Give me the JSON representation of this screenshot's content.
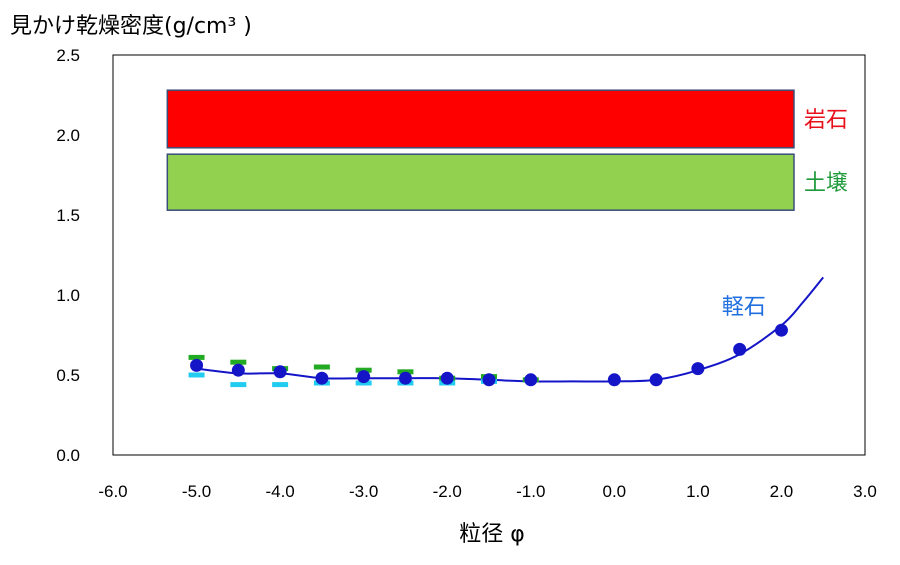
{
  "chart_data": {
    "type": "scatter",
    "title": "",
    "ylabel": "見かけ乾燥密度(g/cm³ )",
    "xlabel": "粒径 φ",
    "xlim": [
      -6.0,
      3.0
    ],
    "ylim": [
      0.0,
      2.5
    ],
    "x_ticks": [
      "-6.0",
      "-5.0",
      "-4.0",
      "-3.0",
      "-2.0",
      "-1.0",
      "0.0",
      "1.0",
      "2.0",
      "3.0"
    ],
    "y_ticks": [
      "0.0",
      "0.5",
      "1.0",
      "1.5",
      "2.0",
      "2.5"
    ],
    "grid": false,
    "bands": [
      {
        "label": "岩石",
        "x": [
          -5.35,
          2.15
        ],
        "y": [
          1.92,
          2.28
        ],
        "color": "#ff0000"
      },
      {
        "label": "土壌",
        "x": [
          -5.35,
          2.15
        ],
        "y": [
          1.53,
          1.88
        ],
        "color": "#92d050"
      }
    ],
    "series": [
      {
        "name": "軽石",
        "marker": "circle",
        "color": "#1515c8",
        "x": [
          -5.0,
          -4.5,
          -4.0,
          -3.5,
          -3.0,
          -2.5,
          -2.0,
          -1.5,
          -1.0,
          0.0,
          0.5,
          1.0,
          1.5,
          2.0
        ],
        "y": [
          0.56,
          0.53,
          0.52,
          0.48,
          0.49,
          0.48,
          0.48,
          0.47,
          0.47,
          0.47,
          0.47,
          0.54,
          0.66,
          0.78
        ]
      },
      {
        "marker": "dash",
        "color": "#22aa22",
        "x": [
          -5.0,
          -4.5,
          -4.0,
          -3.5,
          -3.0,
          -2.5,
          -2.0,
          -1.5,
          -1.0
        ],
        "y": [
          0.61,
          0.58,
          0.54,
          0.55,
          0.53,
          0.52,
          0.48,
          0.49,
          0.47
        ]
      },
      {
        "marker": "dash",
        "color": "#22ccf0",
        "x": [
          -5.0,
          -4.5,
          -4.0,
          -3.5,
          -3.0,
          -2.5,
          -2.0,
          -1.5
        ],
        "y": [
          0.5,
          0.44,
          0.44,
          0.45,
          0.45,
          0.45,
          0.45,
          0.46
        ]
      }
    ],
    "fit_curve": {
      "color": "#1515c8",
      "x": [
        -5.0,
        -4.5,
        -4.0,
        -3.5,
        -3.0,
        -2.5,
        -2.0,
        -1.5,
        -1.0,
        -0.5,
        0.0,
        0.5,
        1.0,
        1.5,
        2.0,
        2.25,
        2.5
      ],
      "y": [
        0.54,
        0.51,
        0.51,
        0.48,
        0.48,
        0.48,
        0.48,
        0.47,
        0.46,
        0.46,
        0.46,
        0.47,
        0.53,
        0.63,
        0.81,
        0.95,
        1.11
      ]
    },
    "annotations": [
      {
        "text": "軽石",
        "x": 1.55,
        "y": 0.88,
        "color": "#1f6fe0"
      }
    ]
  }
}
